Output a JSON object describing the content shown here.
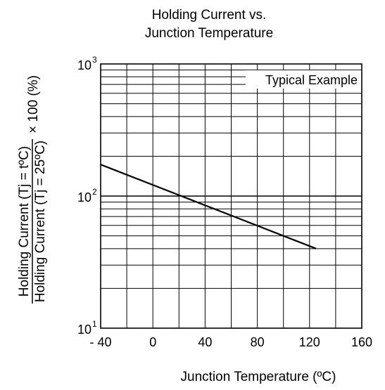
{
  "chart_data": {
    "type": "line",
    "title_lines": [
      "Holding Current vs.",
      "Junction Temperature"
    ],
    "xlabel": "Junction Temperature  (ºC)",
    "ylabel": {
      "numerator": "Holding Current (Tj = tºC)",
      "denominator": "Holding Current (Tj = 25ºC)",
      "multiplier": "× 100 (%)"
    },
    "xlim": [
      -40,
      160
    ],
    "x_ticks": [
      -40,
      0,
      40,
      80,
      120,
      160
    ],
    "x_tick_labels": [
      "- 40",
      "0",
      "40",
      "80",
      "120",
      "160"
    ],
    "x_minor_step": 20,
    "yscale": "log",
    "ylim": [
      10,
      1000
    ],
    "y_ticks": [
      {
        "value": 10,
        "base": "10",
        "exp": "1"
      },
      {
        "value": 100,
        "base": "10",
        "exp": "2"
      },
      {
        "value": 1000,
        "base": "10",
        "exp": "3"
      }
    ],
    "grid": true,
    "legend_text": "Typical Example",
    "legend_position": "top-right",
    "series": [
      {
        "x": [
          -40,
          125
        ],
        "y": [
          173,
          40
        ]
      }
    ]
  }
}
